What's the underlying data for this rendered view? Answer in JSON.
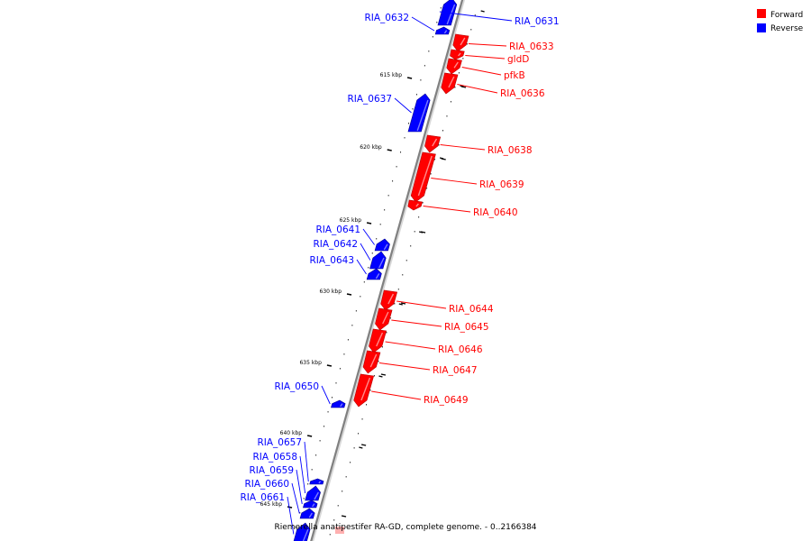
{
  "caption": "Riemerella anatipestifer RA-GD, complete genome. - 0..2166384",
  "legend": [
    {
      "label": "Forward",
      "color": "#ff0000"
    },
    {
      "label": "Reverse",
      "color": "#0000ff"
    }
  ],
  "colors": {
    "forward": "#ff0000",
    "reverse": "#0000ff",
    "backbone": "#808080"
  },
  "ticks": [
    "615 kbp",
    "620 kbp",
    "625 kbp",
    "630 kbp",
    "635 kbp",
    "640 kbp",
    "645 kbp"
  ],
  "genes": [
    {
      "name": "RIA_0631",
      "strand": "reverse"
    },
    {
      "name": "RIA_0632",
      "strand": "reverse"
    },
    {
      "name": "RIA_0633",
      "strand": "forward"
    },
    {
      "name": "gldD",
      "strand": "forward"
    },
    {
      "name": "pfkB",
      "strand": "forward"
    },
    {
      "name": "RIA_0636",
      "strand": "forward"
    },
    {
      "name": "RIA_0637",
      "strand": "reverse"
    },
    {
      "name": "RIA_0638",
      "strand": "forward"
    },
    {
      "name": "RIA_0639",
      "strand": "forward"
    },
    {
      "name": "RIA_0640",
      "strand": "forward"
    },
    {
      "name": "RIA_0641",
      "strand": "reverse"
    },
    {
      "name": "RIA_0642",
      "strand": "reverse"
    },
    {
      "name": "RIA_0643",
      "strand": "reverse"
    },
    {
      "name": "RIA_0644",
      "strand": "forward"
    },
    {
      "name": "RIA_0645",
      "strand": "forward"
    },
    {
      "name": "RIA_0646",
      "strand": "forward"
    },
    {
      "name": "RIA_0647",
      "strand": "forward"
    },
    {
      "name": "RIA_0649",
      "strand": "forward"
    },
    {
      "name": "RIA_0650",
      "strand": "reverse"
    },
    {
      "name": "RIA_0657",
      "strand": "reverse"
    },
    {
      "name": "RIA_0658",
      "strand": "reverse"
    },
    {
      "name": "RIA_0659",
      "strand": "reverse"
    },
    {
      "name": "RIA_0660",
      "strand": "reverse"
    },
    {
      "name": "RIA_0661",
      "strand": "reverse"
    }
  ]
}
